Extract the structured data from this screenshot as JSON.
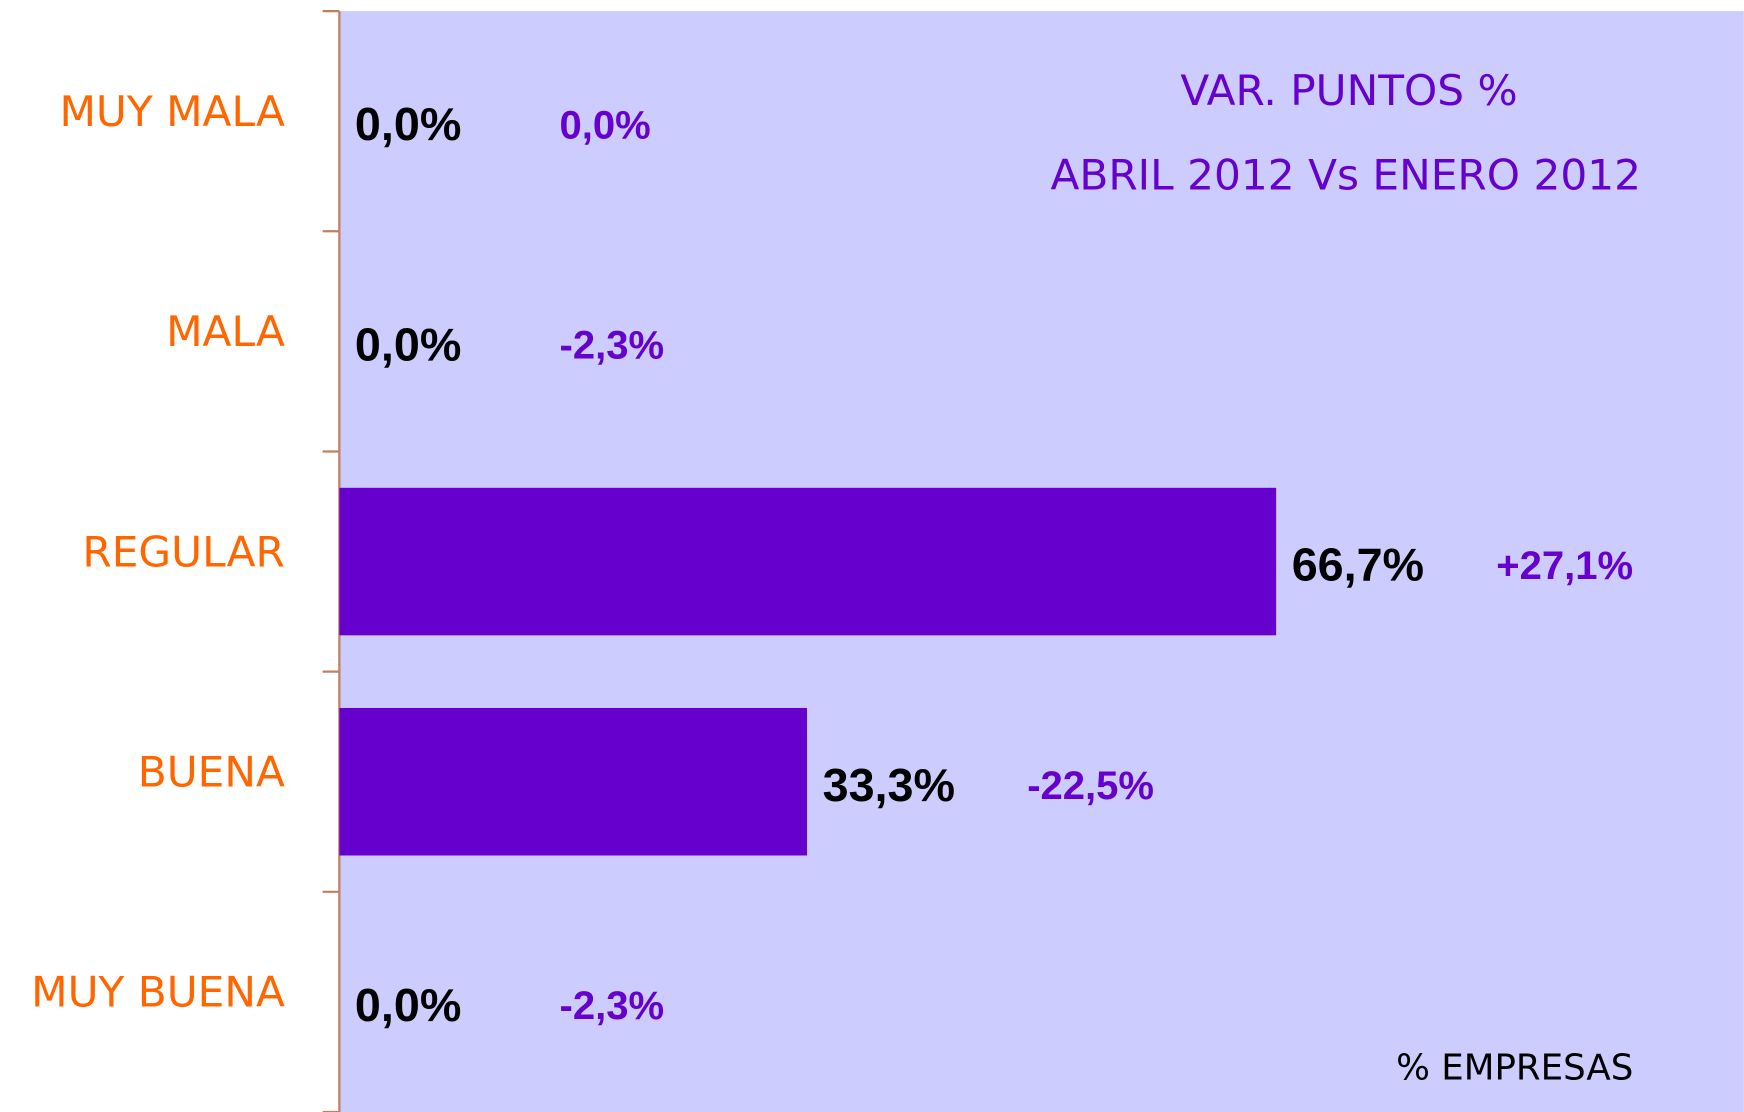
{
  "chart_data": {
    "type": "barh",
    "title": "VAR. PUNTOS %",
    "subtitle": "ABRIL 2012 Vs ENERO 2012",
    "x_label": "% EMPRESAS",
    "categories": [
      "MUY MALA",
      "MALA",
      "REGULAR",
      "BUENA",
      "MUY BUENA"
    ],
    "values": [
      0,
      0,
      66.7,
      33.3,
      0
    ],
    "value_labels": [
      "0,0%",
      "0,0%",
      "66,7%",
      "33,3%",
      "0,0%"
    ],
    "color": "#6600cc",
    "variation": {
      "values": [
        0,
        -2.3,
        27.1,
        -22.5,
        -2.3
      ],
      "value_labels": [
        "0,0%",
        "-2,3%",
        "+27,1%",
        "-22,5%",
        "-2,3%"
      ]
    },
    "xlim": [
      0,
      100
    ]
  }
}
